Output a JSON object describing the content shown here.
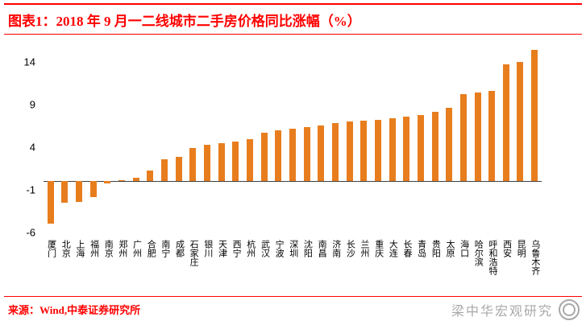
{
  "header": {
    "title": "图表1：2018 年 9 月一二线城市二手房价格同比涨幅（%）"
  },
  "footer": {
    "source": "来源：Wind,中泰证券研究所"
  },
  "watermark": {
    "text": "梁中华宏观研究"
  },
  "colors": {
    "accent_red": "#FF0000",
    "bar_orange": "#E87D1E",
    "axis_gray": "#404040",
    "watermark_gray": "#A8A8A8"
  },
  "chart_data": {
    "type": "bar",
    "title": "2018 年 9 月一二线城市二手房价格同比涨幅（%）",
    "categories": [
      "厦门",
      "北京",
      "上海",
      "福州",
      "南京",
      "郑州",
      "广州",
      "合肥",
      "南宁",
      "成都",
      "石家庄",
      "银川",
      "天津",
      "西宁",
      "杭州",
      "武汉",
      "宁波",
      "深圳",
      "沈阳",
      "南昌",
      "济南",
      "长沙",
      "兰州",
      "重庆",
      "大连",
      "长春",
      "青岛",
      "贵阳",
      "太原",
      "海口",
      "哈尔滨",
      "呼和浩特",
      "西安",
      "昆明",
      "乌鲁木齐"
    ],
    "values": [
      -5.0,
      -2.5,
      -2.4,
      -1.9,
      -0.3,
      0.1,
      0.4,
      1.3,
      2.6,
      2.9,
      3.9,
      4.3,
      4.5,
      4.7,
      4.9,
      5.7,
      6.0,
      6.2,
      6.4,
      6.6,
      6.8,
      7.0,
      7.1,
      7.2,
      7.4,
      7.6,
      7.8,
      8.2,
      8.6,
      10.2,
      10.4,
      10.6,
      13.7,
      14.0,
      15.4
    ],
    "xlabel": "",
    "ylabel": "",
    "unit": "%",
    "yticks": [
      14,
      9,
      4,
      -1,
      -6
    ],
    "ylim": [
      -6.5,
      16.2
    ],
    "grid": false,
    "legend": "none",
    "bar_color": "#E87D1E"
  }
}
